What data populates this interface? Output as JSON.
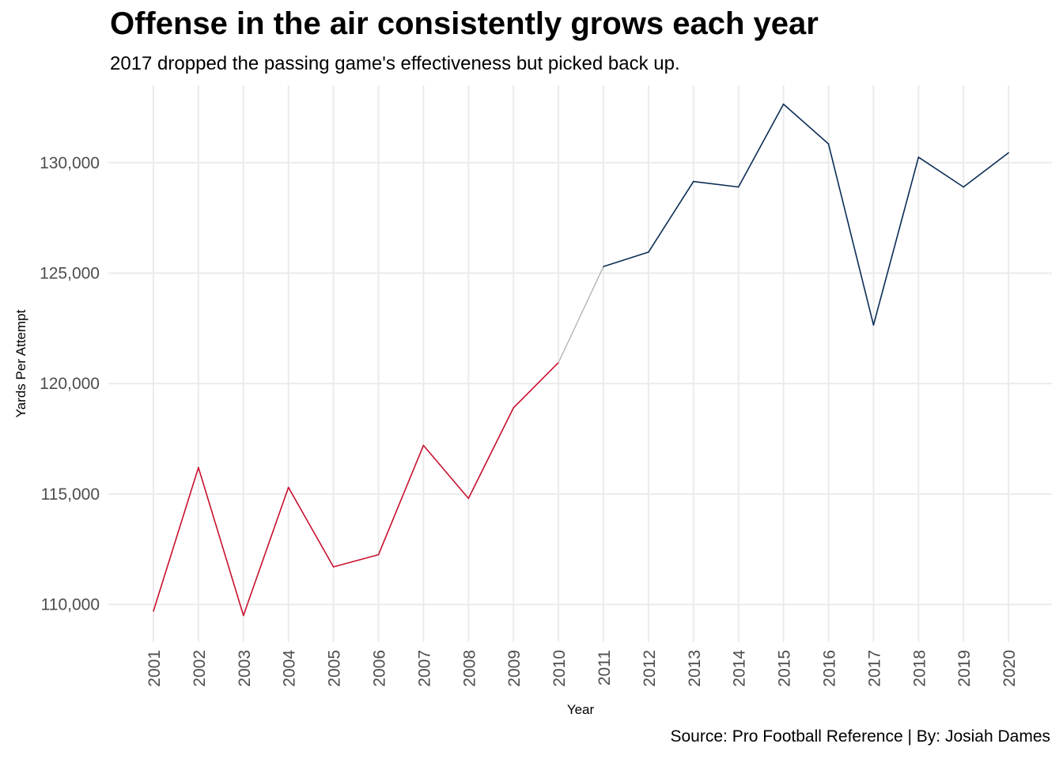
{
  "chart_data": {
    "type": "line",
    "title": "Offense in the air consistently grows each year",
    "subtitle": "2017 dropped the passing game's effectiveness but picked back up.",
    "caption": "Source: Pro Football Reference | By: Josiah Dames",
    "xlabel": "Year",
    "ylabel": "Yards Per Attempt",
    "categories": [
      "2001",
      "2002",
      "2003",
      "2004",
      "2005",
      "2006",
      "2007",
      "2008",
      "2009",
      "2010",
      "2011",
      "2012",
      "2013",
      "2014",
      "2015",
      "2016",
      "2017",
      "2018",
      "2019",
      "2020"
    ],
    "values": [
      109700,
      116200,
      109500,
      115300,
      111700,
      112250,
      117200,
      114800,
      118900,
      120950,
      125300,
      125950,
      129150,
      128900,
      132650,
      130850,
      122650,
      130250,
      128900,
      130450
    ],
    "ylim": [
      108300,
      133500
    ],
    "yticks": [
      110000,
      115000,
      120000,
      125000,
      130000
    ],
    "ytick_labels": [
      "110,000",
      "115,000",
      "120,000",
      "125,000",
      "130,000"
    ],
    "grid": true,
    "legend": "none",
    "colors": {
      "early": "#c8102e",
      "transition": "#b0b0b0",
      "late": "#0b2d55",
      "grid": "#ebebeb"
    }
  }
}
